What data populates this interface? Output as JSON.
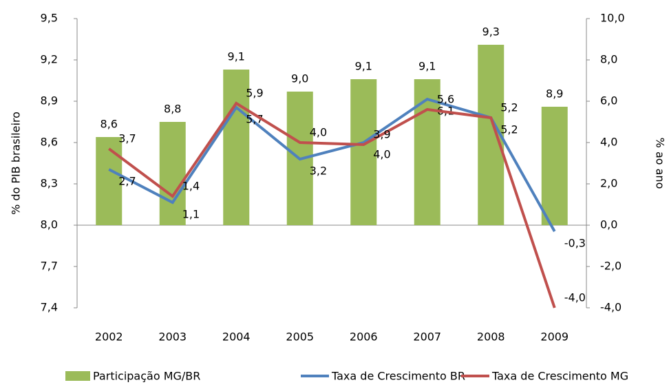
{
  "chart_data": {
    "type": "bar-line",
    "y_label": "% do PIB brasileiro",
    "y2_label": "% ao ano",
    "categories": [
      "2002",
      "2003",
      "2004",
      "2005",
      "2006",
      "2007",
      "2008",
      "2009"
    ],
    "baseline": 8,
    "ylim": [
      7.4,
      9.5
    ],
    "yticks": [
      {
        "value": 7.4,
        "label": "7,4"
      },
      {
        "value": 7.7,
        "label": "7,7"
      },
      {
        "value": 8.0,
        "label": "8,0"
      },
      {
        "value": 8.3,
        "label": "8,3"
      },
      {
        "value": 8.6,
        "label": "8,6"
      },
      {
        "value": 8.9,
        "label": "8,9"
      },
      {
        "value": 9.2,
        "label": "9,2"
      },
      {
        "value": 9.5,
        "label": "9,5"
      }
    ],
    "y2lim": [
      -4,
      10
    ],
    "y2ticks": [
      {
        "value": -4,
        "label": "-4,0"
      },
      {
        "value": -2,
        "label": "-2,0"
      },
      {
        "value": 0,
        "label": "0,0"
      },
      {
        "value": 2,
        "label": "2,0"
      },
      {
        "value": 4,
        "label": "4,0"
      },
      {
        "value": 6,
        "label": "6,0"
      },
      {
        "value": 8,
        "label": "8,0"
      },
      {
        "value": 10,
        "label": "10,0"
      }
    ],
    "series": [
      {
        "name": "Participação MG/BR",
        "type": "bar",
        "color": "#9bbb59",
        "values": [
          8.64,
          8.75,
          9.13,
          8.97,
          9.06,
          9.06,
          9.31,
          8.86
        ],
        "value_labels": [
          "8,6",
          "8,8",
          "9,1",
          "9,0",
          "9,1",
          "9,1",
          "9,3",
          "8,9"
        ]
      },
      {
        "name": "Taxa de Crescimento BR",
        "type": "line",
        "axis": "y2",
        "color": "#4f81bd",
        "values": [
          2.7,
          1.1,
          5.7,
          3.2,
          4.0,
          6.1,
          5.2,
          -0.3
        ],
        "value_labels": [
          "2,7",
          "1,1",
          "5,7",
          "3,2",
          "4,0",
          "6,1",
          "5,2",
          "-0,3"
        ]
      },
      {
        "name": "Taxa de Crescimento MG",
        "type": "line",
        "axis": "y2",
        "color": "#c0504d",
        "values": [
          3.7,
          1.4,
          5.9,
          4.0,
          3.9,
          5.6,
          5.2,
          -4.0
        ],
        "value_labels": [
          "3,7",
          "1,4",
          "5,9",
          "4,0",
          "3,9",
          "5,6",
          "5,2",
          "-4,0"
        ]
      }
    ]
  }
}
